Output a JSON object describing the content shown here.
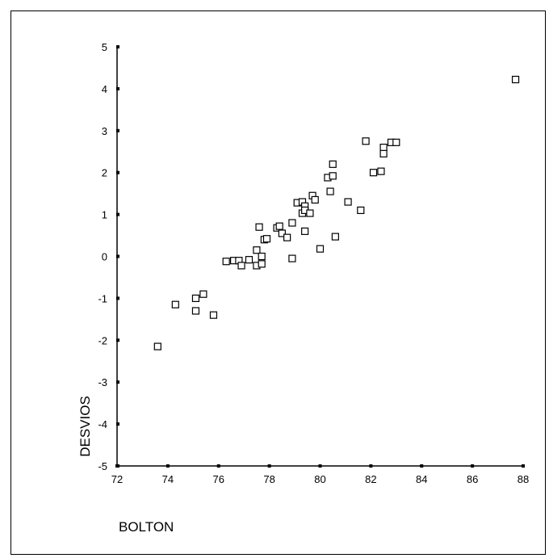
{
  "chart_data": {
    "type": "scatter",
    "xlabel": "BOLTON",
    "ylabel": "DESVIOS",
    "xlim": [
      72,
      88
    ],
    "ylim": [
      -5,
      5
    ],
    "xticks": [
      "72",
      "74",
      "76",
      "78",
      "80",
      "82",
      "84",
      "86",
      "88"
    ],
    "yticks": [
      "5",
      "4",
      "3",
      "2",
      "1",
      "0",
      "-1",
      "-2",
      "-3",
      "-4",
      "-5"
    ],
    "marker": "hollow-square",
    "color": "#000000",
    "grid": false,
    "points": [
      {
        "x": 73.6,
        "y": -2.15
      },
      {
        "x": 74.3,
        "y": -1.15
      },
      {
        "x": 75.1,
        "y": -1.0
      },
      {
        "x": 75.1,
        "y": -1.3
      },
      {
        "x": 75.4,
        "y": -0.9
      },
      {
        "x": 75.8,
        "y": -1.4
      },
      {
        "x": 76.3,
        "y": -0.12
      },
      {
        "x": 76.6,
        "y": -0.1
      },
      {
        "x": 76.8,
        "y": -0.1
      },
      {
        "x": 76.9,
        "y": -0.22
      },
      {
        "x": 77.2,
        "y": -0.08
      },
      {
        "x": 77.5,
        "y": 0.15
      },
      {
        "x": 77.5,
        "y": -0.22
      },
      {
        "x": 77.6,
        "y": 0.7
      },
      {
        "x": 77.7,
        "y": 0.0
      },
      {
        "x": 77.7,
        "y": -0.18
      },
      {
        "x": 77.8,
        "y": 0.4
      },
      {
        "x": 77.9,
        "y": 0.42
      },
      {
        "x": 78.3,
        "y": 0.68
      },
      {
        "x": 78.4,
        "y": 0.72
      },
      {
        "x": 78.5,
        "y": 0.55
      },
      {
        "x": 78.7,
        "y": 0.45
      },
      {
        "x": 78.9,
        "y": 0.8
      },
      {
        "x": 78.9,
        "y": -0.05
      },
      {
        "x": 79.1,
        "y": 1.28
      },
      {
        "x": 79.3,
        "y": 1.3
      },
      {
        "x": 79.3,
        "y": 1.03
      },
      {
        "x": 79.4,
        "y": 1.2
      },
      {
        "x": 79.4,
        "y": 1.1
      },
      {
        "x": 79.4,
        "y": 0.6
      },
      {
        "x": 79.6,
        "y": 1.03
      },
      {
        "x": 79.7,
        "y": 1.45
      },
      {
        "x": 79.8,
        "y": 1.35
      },
      {
        "x": 80.0,
        "y": 0.18
      },
      {
        "x": 80.3,
        "y": 1.88
      },
      {
        "x": 80.4,
        "y": 1.55
      },
      {
        "x": 80.5,
        "y": 2.2
      },
      {
        "x": 80.5,
        "y": 1.92
      },
      {
        "x": 80.6,
        "y": 0.47
      },
      {
        "x": 81.1,
        "y": 1.3
      },
      {
        "x": 81.6,
        "y": 1.1
      },
      {
        "x": 81.8,
        "y": 2.75
      },
      {
        "x": 82.1,
        "y": 2.0
      },
      {
        "x": 82.4,
        "y": 2.03
      },
      {
        "x": 82.5,
        "y": 2.6
      },
      {
        "x": 82.5,
        "y": 2.45
      },
      {
        "x": 82.8,
        "y": 2.72
      },
      {
        "x": 83.0,
        "y": 2.72
      },
      {
        "x": 87.7,
        "y": 4.22
      }
    ]
  }
}
